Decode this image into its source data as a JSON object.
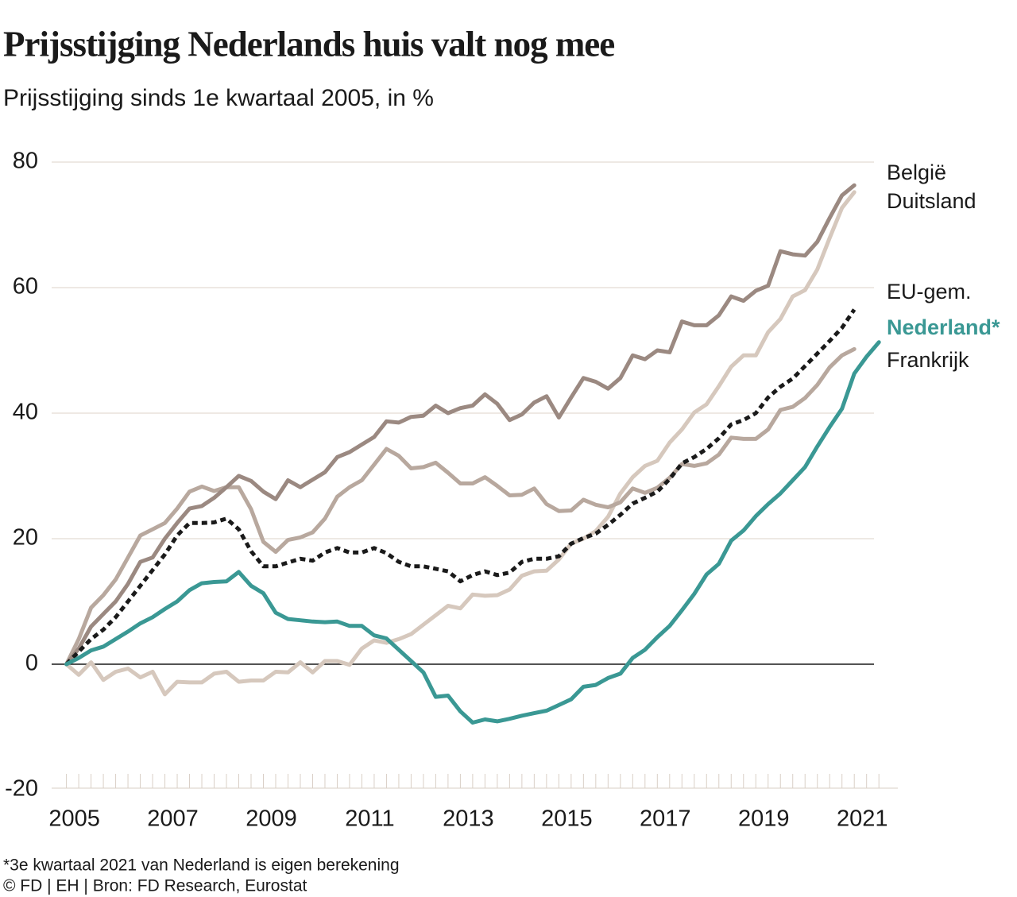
{
  "chart_data": {
    "type": "line",
    "title": "Prijsstijging Nederlands huis valt nog mee",
    "subtitle": "Prijsstijging sinds 1e kwartaal 2005, in %",
    "footnote": "*3e kwartaal 2021 van Nederland is eigen berekening",
    "source": "© FD | EH | Bron: FD Research, Eurostat",
    "x": [
      2005,
      2005.25,
      2005.5,
      2005.75,
      2006,
      2006.25,
      2006.5,
      2006.75,
      2007,
      2007.25,
      2007.5,
      2007.75,
      2008,
      2008.25,
      2008.5,
      2008.75,
      2009,
      2009.25,
      2009.5,
      2009.75,
      2010,
      2010.25,
      2010.5,
      2010.75,
      2011,
      2011.25,
      2011.5,
      2011.75,
      2012,
      2012.25,
      2012.5,
      2012.75,
      2013,
      2013.25,
      2013.5,
      2013.75,
      2014,
      2014.25,
      2014.5,
      2014.75,
      2015,
      2015.25,
      2015.5,
      2015.75,
      2016,
      2016.25,
      2016.5,
      2016.75,
      2017,
      2017.25,
      2017.5,
      2017.75,
      2018,
      2018.25,
      2018.5,
      2018.75,
      2019,
      2019.25,
      2019.5,
      2019.75,
      2020,
      2020.25,
      2020.5,
      2020.75,
      2021,
      2021.25,
      2021.5
    ],
    "xlim": [
      2004.7,
      2021.4
    ],
    "xticks": [
      2005,
      2007,
      2009,
      2011,
      2013,
      2015,
      2017,
      2019,
      2021
    ],
    "ylim": [
      -20,
      80
    ],
    "yticks": [
      -20,
      0,
      20,
      40,
      60,
      80
    ],
    "grid": true,
    "series": [
      {
        "name": "Duitsland",
        "color": "#d6c8bd",
        "values": [
          0,
          -1.7,
          0.3,
          -2.5,
          -1.2,
          -0.7,
          -2.1,
          -1.2,
          -4.8,
          -2.8,
          -2.9,
          -2.9,
          -1.5,
          -1.2,
          -2.8,
          -2.6,
          -2.6,
          -1.2,
          -1.3,
          0.3,
          -1.3,
          0.5,
          0.5,
          -0.1,
          2.5,
          3.8,
          3.4,
          4,
          4.8,
          6.3,
          7.8,
          9.3,
          8.9,
          11.1,
          10.9,
          11,
          11.9,
          14.1,
          14.8,
          14.9,
          16.7,
          19.2,
          20,
          21.2,
          23.5,
          27.2,
          29.8,
          31.6,
          32.4,
          35.3,
          37.4,
          40.1,
          41.4,
          44.3,
          47.4,
          49.2,
          49.2,
          52.9,
          55,
          58.6,
          59.6,
          62.9,
          67.9,
          72.7,
          75.2,
          null,
          null
        ]
      },
      {
        "name": "Frankrijk",
        "color": "#b8a89e",
        "values": [
          0,
          4,
          9,
          11,
          13.5,
          17,
          20.5,
          21.5,
          22.5,
          24.8,
          27.5,
          28.3,
          27.6,
          28.2,
          28.2,
          24.7,
          19.5,
          17.9,
          19.8,
          20.2,
          21,
          23.2,
          26.7,
          28.2,
          29.3,
          31.8,
          34.3,
          33.2,
          31.2,
          31.4,
          32.1,
          30.5,
          28.8,
          28.8,
          29.8,
          28.4,
          26.9,
          27,
          28,
          25.5,
          24.4,
          24.5,
          26.2,
          25.4,
          25,
          25.8,
          28,
          27.3,
          28.1,
          29.7,
          31.9,
          31.6,
          32,
          33.4,
          36.1,
          35.9,
          35.9,
          37.4,
          40.5,
          41,
          42.4,
          44.5,
          47.3,
          49.2,
          50.2,
          null,
          null
        ]
      },
      {
        "name": "België",
        "color": "#9b8981",
        "values": [
          0,
          2.5,
          6,
          8,
          10,
          12.8,
          16.3,
          17,
          20,
          22.5,
          24.8,
          25.2,
          26.5,
          28.2,
          30,
          29.2,
          27.5,
          26.3,
          29.3,
          28.2,
          29.4,
          30.6,
          33,
          33.8,
          35,
          36.2,
          38.7,
          38.5,
          39.4,
          39.6,
          41.2,
          40,
          40.8,
          41.2,
          43,
          41.5,
          38.9,
          39.8,
          41.7,
          42.7,
          39.3,
          42.5,
          45.6,
          45,
          43.9,
          45.6,
          49.2,
          48.6,
          50,
          49.7,
          54.6,
          54,
          54,
          55.6,
          58.6,
          57.9,
          59.5,
          60.3,
          65.8,
          65.3,
          65.1,
          67.3,
          71.1,
          74.7,
          76.3,
          null,
          null
        ]
      },
      {
        "name": "EU-gem.",
        "color": "#1a1a1a",
        "values": [
          0,
          2,
          4,
          5.5,
          7.5,
          10,
          12.5,
          15,
          17.5,
          20.5,
          22.5,
          22.5,
          22.6,
          23.2,
          21.5,
          18,
          15.6,
          15.6,
          16.2,
          16.8,
          16.5,
          17.8,
          18.5,
          17.8,
          17.8,
          18.5,
          17.7,
          16.3,
          15.6,
          15.6,
          15.2,
          14.8,
          13.2,
          14.2,
          14.8,
          14.2,
          14.6,
          16.3,
          16.8,
          16.8,
          17.2,
          19.2,
          20.1,
          20.8,
          22.2,
          23.8,
          25.6,
          26.5,
          27.5,
          29.5,
          32,
          33,
          34.3,
          36,
          38.2,
          38.9,
          40,
          42.5,
          44.2,
          45.5,
          47.5,
          49.5,
          51.5,
          53.6,
          56.5,
          null,
          null
        ],
        "dashed": true
      },
      {
        "name": "Nederland*",
        "color": "#3a9894",
        "values": [
          0,
          1,
          2.2,
          2.8,
          4,
          5.2,
          6.5,
          7.5,
          8.8,
          10,
          11.8,
          12.9,
          13.1,
          13.2,
          14.7,
          12.5,
          11.3,
          8.2,
          7.2,
          7,
          6.8,
          6.7,
          6.8,
          6.1,
          6.1,
          4.6,
          4.1,
          2.3,
          0.5,
          -1.3,
          -5.2,
          -5,
          -7.5,
          -9.3,
          -8.8,
          -9.1,
          -8.7,
          -8.2,
          -7.8,
          -7.4,
          -6.5,
          -5.6,
          -3.6,
          -3.3,
          -2.2,
          -1.5,
          1,
          2.3,
          4.3,
          6.1,
          8.6,
          11.2,
          14.3,
          16,
          19.7,
          21.3,
          23.6,
          25.5,
          27.2,
          29.3,
          31.4,
          34.7,
          37.8,
          40.7,
          46.3,
          49,
          51.3
        ],
        "highlight": true
      }
    ]
  }
}
